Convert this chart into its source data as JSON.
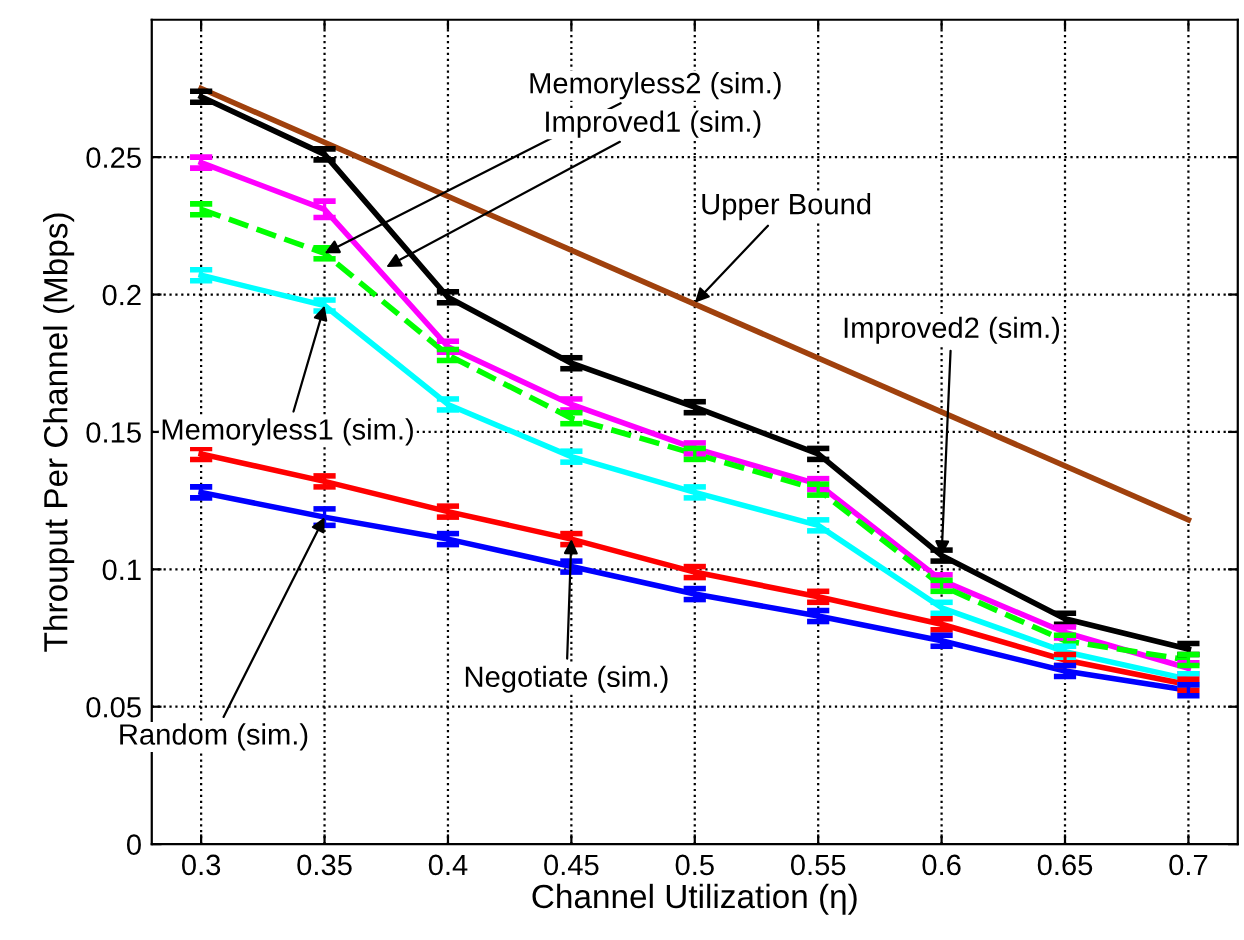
{
  "chart_data": {
    "type": "line",
    "xlabel": "Channel Utilization (η)",
    "ylabel": "Throuput Per Channel (Mbps)",
    "x": [
      0.3,
      0.35,
      0.4,
      0.45,
      0.5,
      0.55,
      0.6,
      0.65,
      0.7
    ],
    "series": [
      {
        "color": "#a0410d",
        "x": [
          0.3,
          0.7
        ],
        "values": [
          0.275,
          0.118
        ]
      },
      {
        "color": "#000000",
        "values": [
          0.272,
          0.251,
          0.199,
          0.175,
          0.159,
          0.142,
          0.105,
          0.082,
          0.071
        ],
        "errors": [
          0.002,
          0.002,
          0.002,
          0.002,
          0.002,
          0.002,
          0.002,
          0.002,
          0.002
        ]
      },
      {
        "color": "#ff00ff",
        "values": [
          0.248,
          0.231,
          0.181,
          0.16,
          0.144,
          0.131,
          0.096,
          0.077,
          0.064
        ],
        "errors": [
          0.002,
          0.003,
          0.002,
          0.002,
          0.002,
          0.002,
          0.002,
          0.002,
          0.002
        ]
      },
      {
        "color": "#00ff00",
        "line_style": "dashed",
        "values": [
          0.231,
          0.215,
          0.178,
          0.155,
          0.142,
          0.129,
          0.094,
          0.074,
          0.067
        ],
        "errors": [
          0.002,
          0.002,
          0.002,
          0.002,
          0.002,
          0.002,
          0.002,
          0.002,
          0.002
        ]
      },
      {
        "color": "#00ffff",
        "values": [
          0.207,
          0.196,
          0.16,
          0.141,
          0.128,
          0.116,
          0.086,
          0.07,
          0.06
        ],
        "errors": [
          0.002,
          0.002,
          0.002,
          0.002,
          0.002,
          0.002,
          0.002,
          0.002,
          0.002
        ]
      },
      {
        "color": "#ff0000",
        "values": [
          0.142,
          0.132,
          0.121,
          0.111,
          0.099,
          0.09,
          0.08,
          0.067,
          0.058
        ],
        "errors": [
          0.002,
          0.002,
          0.002,
          0.002,
          0.002,
          0.002,
          0.002,
          0.002,
          0.002
        ]
      },
      {
        "color": "#0000ff",
        "values": [
          0.128,
          0.119,
          0.111,
          0.101,
          0.091,
          0.083,
          0.074,
          0.063,
          0.056
        ],
        "errors": [
          0.002,
          0.003,
          0.002,
          0.002,
          0.002,
          0.002,
          0.002,
          0.002,
          0.002
        ]
      }
    ],
    "annotations": [
      {
        "text": "Memoryless2 (sim.)",
        "x": 0.35,
        "y": 0.215
      },
      {
        "text": "Improved1 (sim.)",
        "x": 0.375,
        "y": 0.21
      },
      {
        "text": "Upper Bound",
        "x": 0.5,
        "y": 0.197
      },
      {
        "text": "Improved2 (sim.)",
        "x": 0.6,
        "y": 0.105
      },
      {
        "text": "Memoryless1 (sim.)",
        "x": 0.35,
        "y": 0.196
      },
      {
        "text": "Random (sim.)",
        "x": 0.35,
        "y": 0.119
      },
      {
        "text": "Negotiate (sim.)",
        "x": 0.45,
        "y": 0.111
      }
    ],
    "xlim": [
      0.28,
      0.72
    ],
    "ylim": [
      0,
      0.3
    ],
    "xticks": [
      0.3,
      0.35,
      0.4,
      0.45,
      0.5,
      0.55,
      0.6,
      0.65,
      0.7
    ],
    "yticks": [
      0,
      0.05,
      0.1,
      0.15,
      0.2,
      0.25
    ],
    "grid": true,
    "marker": "none",
    "line_style": "solid",
    "legend": false
  }
}
